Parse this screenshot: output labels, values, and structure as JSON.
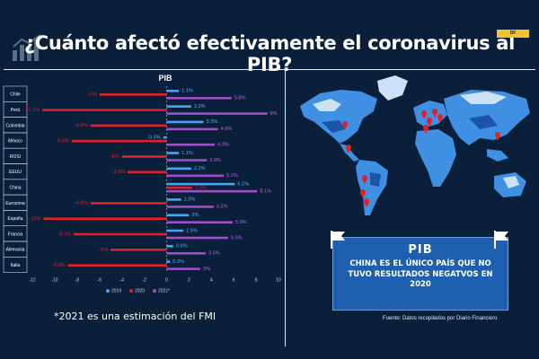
{
  "header": {
    "title": "¿Cuánto afectó efectivamente el coronavirus al PIB?",
    "brand": "DF"
  },
  "chart_data": {
    "type": "bar",
    "orientation": "horizontal",
    "title": "PIB",
    "categories": [
      "Chile",
      "Perú",
      "Colombia",
      "México",
      "ROSI",
      "EEUU",
      "China",
      "Eurozona",
      "España",
      "Francia",
      "Alemania",
      "Italia"
    ],
    "series": [
      {
        "name": "2019",
        "color": "#4aa3f0",
        "values": [
          1.1,
          2.2,
          3.3,
          -0.3,
          1.1,
          2.2,
          6.1,
          1.3,
          2,
          1.5,
          0.6,
          0.3
        ],
        "labels": [
          "1.1%",
          "2.2%",
          "3.3%",
          "-0.3%",
          "1.1%",
          "2.2%",
          "6.1%",
          "1.3%",
          "2%",
          "1.5%",
          "0.6%",
          "0.3%"
        ]
      },
      {
        "name": "2020",
        "color": "#e3202a",
        "values": [
          -6,
          -11.1,
          -6.8,
          -8.5,
          -4,
          -3.5,
          2.3,
          -6.8,
          -11,
          -8.3,
          -5,
          -8.8
        ],
        "labels": [
          "-6%",
          "-11.1%",
          "-6.8%",
          "-8.5%",
          "-4%",
          "-3.5%",
          "2.3%",
          "-6.8%",
          "-11%",
          "-8.3%",
          "-5%",
          "-8.8%"
        ]
      },
      {
        "name": "2021*",
        "color": "#a04fc8",
        "values": [
          5.8,
          9,
          4.6,
          4.3,
          3.6,
          5.1,
          8.1,
          4.2,
          5.9,
          5.5,
          3.5,
          3
        ],
        "labels": [
          "5.8%",
          "9%",
          "4.6%",
          "4.3%",
          "3.6%",
          "5.1%",
          "8.1%",
          "4.2%",
          "5.9%",
          "5.5%",
          "3.5%",
          "3%"
        ]
      }
    ],
    "xlim": [
      -12,
      10
    ],
    "xticks": [
      -12,
      -10,
      -8,
      -6,
      -4,
      -2,
      0,
      2,
      4,
      6,
      8,
      10
    ],
    "grid": false,
    "legend": "bottom"
  },
  "footnote": "*2021 es una estimación del FMI",
  "card": {
    "title": "PIB",
    "text": "CHINA ES EL ÚNICO PAÍS QUE NO TUVO RESULTADOS NEGATVOS EN 2020"
  },
  "source": "Fuente: Datos recopilados por Diario Financiero",
  "colors": {
    "background": "#0a1f3a",
    "map_land": "#3f8fe3",
    "card": "#1f5fb0",
    "pin": "#e3202a"
  }
}
